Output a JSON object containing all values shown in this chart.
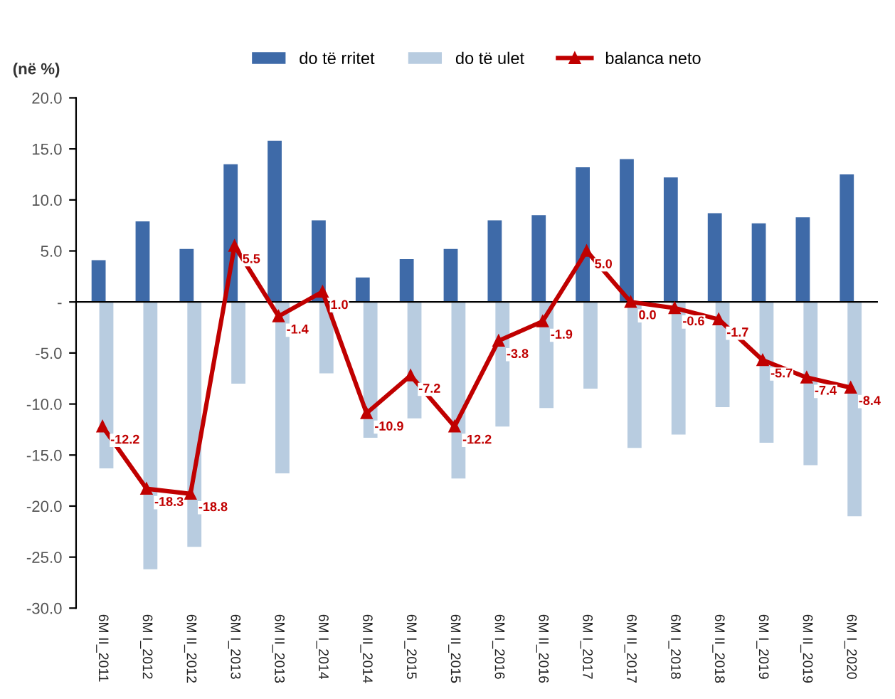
{
  "chart_data": {
    "type": "bar",
    "ylabel": "(në %)",
    "categories": [
      "6M II_2011",
      "6M I_2012",
      "6M II_2012",
      "6M I_2013",
      "6M II_2013",
      "6M I_2014",
      "6M II_2014",
      "6M I_2015",
      "6M II_2015",
      "6M I_2016",
      "6M II_2016",
      "6M I_2017",
      "6M II_2017",
      "6M I_2018",
      "6M II_2018",
      "6M I_2019",
      "6M II_2019",
      "6M I_2020"
    ],
    "series": [
      {
        "name": "do të rritet",
        "type": "bar",
        "color": "#3e6aa8",
        "values": [
          4.1,
          7.9,
          5.2,
          13.5,
          15.8,
          8.0,
          2.4,
          4.2,
          5.2,
          8.0,
          8.5,
          13.2,
          14.0,
          12.2,
          8.7,
          7.7,
          8.3,
          12.5
        ]
      },
      {
        "name": "do të ulet",
        "type": "bar",
        "color": "#b8cce0",
        "values": [
          -16.3,
          -26.2,
          -24.0,
          -8.0,
          -16.8,
          -7.0,
          -13.3,
          -11.4,
          -17.3,
          -12.2,
          -10.4,
          -8.5,
          -14.3,
          -13.0,
          -10.3,
          -13.8,
          -16.0,
          -21.0
        ]
      },
      {
        "name": "balanca neto",
        "type": "line",
        "color": "#c00000",
        "marker": "triangle",
        "value_labels": [
          "-12.2",
          "-18.3",
          "-18.8",
          "5.5",
          "-1.4",
          "1.0",
          "-10.9",
          "-7.2",
          "-12.2",
          "-3.8",
          "-1.9",
          "5.0",
          "0.0",
          "-0.6",
          "-1.7",
          "-5.7",
          "-7.4",
          "-8.4"
        ],
        "values": [
          -12.2,
          -18.3,
          -18.8,
          5.5,
          -1.4,
          1.0,
          -10.9,
          -7.2,
          -12.2,
          -3.8,
          -1.9,
          5.0,
          0.0,
          -0.6,
          -1.7,
          -5.7,
          -7.4,
          -8.4
        ]
      }
    ],
    "ylim": [
      -30,
      20
    ],
    "yticks": [
      {
        "value": -30,
        "label": "-30.0"
      },
      {
        "value": -25,
        "label": "-25.0"
      },
      {
        "value": -20,
        "label": "-20.0"
      },
      {
        "value": -15,
        "label": "-15.0"
      },
      {
        "value": -10,
        "label": "-10.0"
      },
      {
        "value": -5,
        "label": "-5.0"
      },
      {
        "value": 0,
        "label": "-"
      },
      {
        "value": 5,
        "label": "5.0"
      },
      {
        "value": 10,
        "label": "10.0"
      },
      {
        "value": 15,
        "label": "15.0"
      },
      {
        "value": 20,
        "label": "20.0"
      }
    ],
    "legend": "top"
  }
}
